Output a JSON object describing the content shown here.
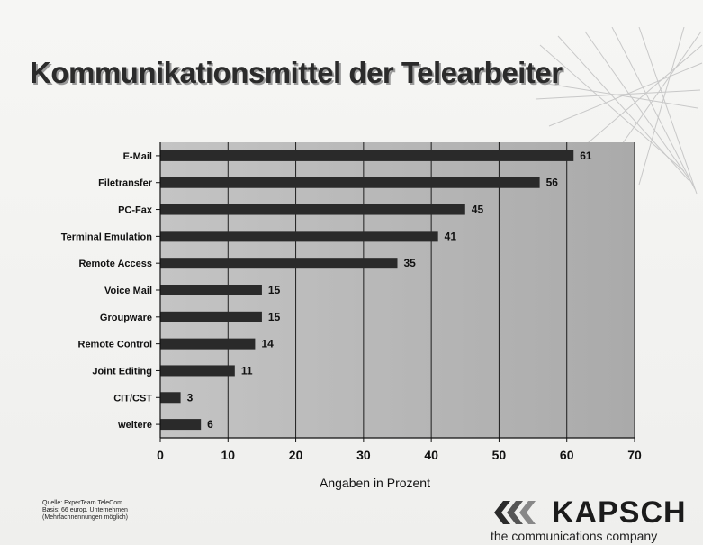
{
  "title": "Kommunikationsmittel der Telearbeiter",
  "chart_data": {
    "type": "bar",
    "orientation": "horizontal",
    "categories": [
      "E-Mail",
      "Filetransfer",
      "PC-Fax",
      "Terminal Emulation",
      "Remote Access",
      "Voice Mail",
      "Groupware",
      "Remote Control",
      "Joint Editing",
      "CIT/CST",
      "weitere"
    ],
    "values": [
      61,
      56,
      45,
      41,
      35,
      15,
      15,
      14,
      11,
      3,
      6
    ],
    "xlabel": "Angaben in Prozent",
    "ylabel": "",
    "xlim": [
      0,
      70
    ],
    "xticks": [
      0,
      10,
      20,
      30,
      40,
      50,
      60,
      70
    ],
    "grid": true,
    "bar_color": "#2a2a2a",
    "plot_background": "#b9b9b9"
  },
  "source": {
    "line1": "Quelle: ExperTeam TeleCom",
    "line2": "Basis: 66 europ. Unternehmen",
    "line3": "(Mehrfachnennungen möglich)"
  },
  "logo": {
    "name": "KAPSCH",
    "tagline": "the communications company"
  }
}
